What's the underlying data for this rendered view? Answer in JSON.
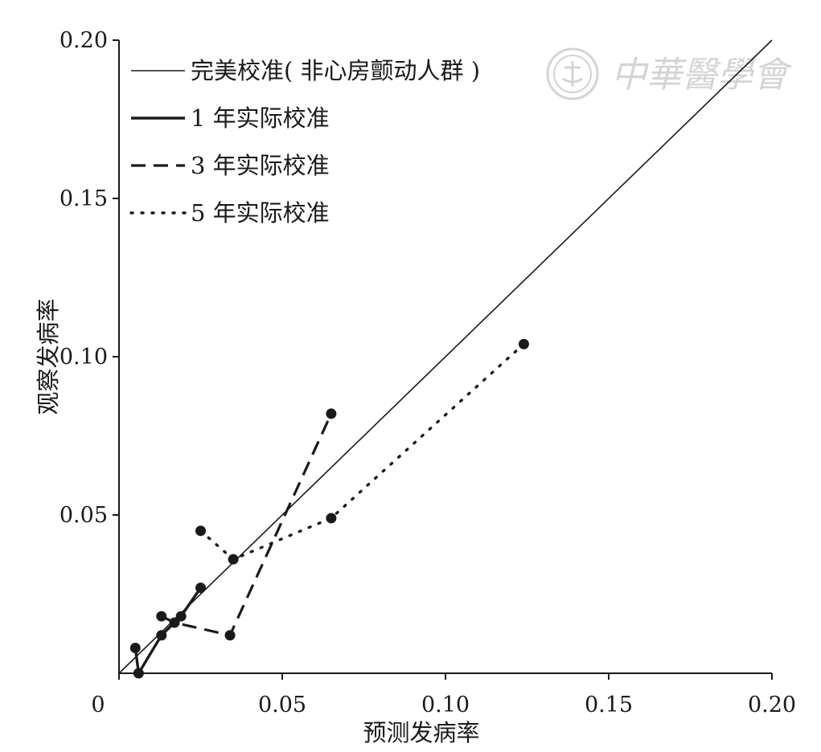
{
  "chart_data": {
    "type": "line",
    "title": "",
    "xlabel": "预测发病率",
    "ylabel": "观察发病率",
    "xlim": [
      0,
      0.2
    ],
    "ylim": [
      0,
      0.2
    ],
    "x_ticks": [
      {
        "value": 0,
        "label": "0"
      },
      {
        "value": 0.05,
        "label": "0.05"
      },
      {
        "value": 0.1,
        "label": "0.10"
      },
      {
        "value": 0.15,
        "label": "0.15"
      },
      {
        "value": 0.2,
        "label": "0.20"
      }
    ],
    "y_ticks": [
      {
        "value": 0.05,
        "label": "0.05"
      },
      {
        "value": 0.1,
        "label": "0.10"
      },
      {
        "value": 0.15,
        "label": "0.15"
      },
      {
        "value": 0.2,
        "label": "0.20"
      }
    ],
    "grid": false,
    "legend_position": "top-left",
    "series": [
      {
        "name": "完美校准( 非心房颤动人群 )",
        "style": "thin-solid",
        "x": [
          0,
          0.2
        ],
        "y": [
          0,
          0.2
        ],
        "markers": false
      },
      {
        "name": "1 年实际校准",
        "style": "thick-solid",
        "x": [
          0.005,
          0.006,
          0.013,
          0.019,
          0.025
        ],
        "y": [
          0.008,
          0.0,
          0.012,
          0.018,
          0.027
        ],
        "markers": true
      },
      {
        "name": "3 年实际校准",
        "style": "dashed",
        "x": [
          0.013,
          0.017,
          0.034,
          0.065
        ],
        "y": [
          0.018,
          0.016,
          0.012,
          0.082
        ],
        "markers": true
      },
      {
        "name": "5 年实际校准",
        "style": "dotted",
        "x": [
          0.025,
          0.035,
          0.065,
          0.124
        ],
        "y": [
          0.045,
          0.036,
          0.049,
          0.104
        ],
        "markers": true
      }
    ]
  },
  "watermark": {
    "text": "中華醫學會",
    "color": "#d4d4d4",
    "icon": "society-seal-icon"
  }
}
